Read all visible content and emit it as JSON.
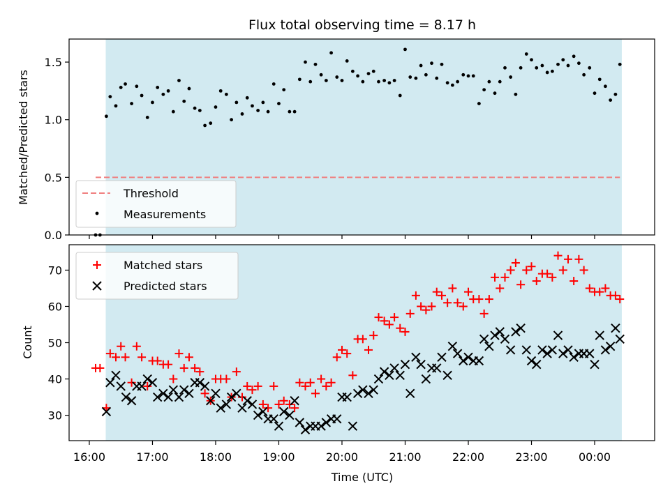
{
  "chart_data": [
    {
      "type": "scatter",
      "title": "Flux total observing time = 8.17 h",
      "xlabel": "",
      "ylabel": "Matched/Predicted stars",
      "x_units": "hours since 16:00 UTC",
      "xlim": [
        -0.32,
        8.95
      ],
      "ylim": [
        0.0,
        1.7
      ],
      "yticks": [
        0.0,
        0.5,
        1.0,
        1.5
      ],
      "ytick_labels": [
        "0.0",
        "0.5",
        "1.0",
        "1.5"
      ],
      "observing_window": [
        0.26,
        8.43
      ],
      "observing_window_color": "#add8e6",
      "threshold": {
        "name": "Threshold",
        "value": 0.5,
        "x_range": [
          0.1,
          8.4
        ],
        "color": "#f07f7f"
      },
      "legend": {
        "location": "lower-left",
        "entries": [
          "Threshold",
          "Measurements"
        ]
      },
      "series": [
        {
          "name": "Measurements",
          "color": "#000000",
          "x": [
            0.1,
            0.17,
            0.27,
            0.33,
            0.42,
            0.5,
            0.57,
            0.67,
            0.75,
            0.83,
            0.92,
            1.0,
            1.08,
            1.17,
            1.25,
            1.33,
            1.42,
            1.5,
            1.58,
            1.67,
            1.75,
            1.83,
            1.92,
            2.0,
            2.08,
            2.17,
            2.25,
            2.33,
            2.42,
            2.5,
            2.58,
            2.67,
            2.75,
            2.83,
            2.92,
            3.0,
            3.08,
            3.17,
            3.25,
            3.33,
            3.42,
            3.5,
            3.58,
            3.67,
            3.75,
            3.83,
            3.92,
            4.0,
            4.08,
            4.17,
            4.25,
            4.33,
            4.42,
            4.5,
            4.58,
            4.67,
            4.75,
            4.83,
            4.92,
            5.0,
            5.08,
            5.17,
            5.25,
            5.33,
            5.42,
            5.5,
            5.58,
            5.67,
            5.75,
            5.83,
            5.92,
            6.0,
            6.08,
            6.17,
            6.25,
            6.33,
            6.42,
            6.5,
            6.58,
            6.67,
            6.75,
            6.83,
            6.92,
            7.0,
            7.08,
            7.17,
            7.25,
            7.33,
            7.42,
            7.5,
            7.58,
            7.67,
            7.75,
            7.83,
            7.92,
            8.0,
            8.08,
            8.17,
            8.25,
            8.33,
            8.4
          ],
          "values": [
            0.0,
            0.0,
            1.03,
            1.2,
            1.12,
            1.28,
            1.31,
            1.14,
            1.29,
            1.21,
            1.02,
            1.15,
            1.28,
            1.22,
            1.25,
            1.07,
            1.34,
            1.16,
            1.27,
            1.1,
            1.08,
            0.95,
            0.97,
            1.11,
            1.25,
            1.22,
            1.0,
            1.15,
            1.05,
            1.19,
            1.12,
            1.08,
            1.15,
            1.07,
            1.31,
            1.14,
            1.26,
            1.07,
            1.07,
            1.35,
            1.5,
            1.33,
            1.48,
            1.39,
            1.34,
            1.58,
            1.37,
            1.34,
            1.51,
            1.42,
            1.38,
            1.33,
            1.4,
            1.42,
            1.33,
            1.34,
            1.32,
            1.34,
            1.21,
            1.61,
            1.37,
            1.36,
            1.47,
            1.39,
            1.49,
            1.36,
            1.48,
            1.32,
            1.3,
            1.33,
            1.39,
            1.38,
            1.38,
            1.14,
            1.26,
            1.33,
            1.23,
            1.33,
            1.45,
            1.37,
            1.22,
            1.45,
            1.57,
            1.52,
            1.45,
            1.47,
            1.41,
            1.42,
            1.48,
            1.52,
            1.47,
            1.55,
            1.49,
            1.39,
            1.45,
            1.23,
            1.35,
            1.29,
            1.17,
            1.22,
            1.48
          ]
        }
      ]
    },
    {
      "type": "scatter",
      "title": "",
      "xlabel": "Time (UTC)",
      "ylabel": "Count",
      "x_units": "hours since 16:00 UTC",
      "xlim": [
        -0.32,
        8.95
      ],
      "ylim": [
        23,
        77
      ],
      "yticks": [
        30,
        40,
        50,
        60,
        70
      ],
      "ytick_labels": [
        "30",
        "40",
        "50",
        "60",
        "70"
      ],
      "xticks": [
        0,
        1,
        2,
        3,
        4,
        5,
        6,
        7,
        8
      ],
      "xtick_labels": [
        "16:00",
        "17:00",
        "18:00",
        "19:00",
        "20:00",
        "21:00",
        "22:00",
        "23:00",
        "00:00"
      ],
      "observing_window": [
        0.26,
        8.43
      ],
      "observing_window_color": "#add8e6",
      "legend": {
        "location": "upper-left",
        "entries": [
          "Matched stars",
          "Predicted stars"
        ]
      },
      "series": [
        {
          "name": "Matched stars",
          "marker": "+",
          "color": "#ff0000",
          "x": [
            0.1,
            0.17,
            0.27,
            0.33,
            0.42,
            0.5,
            0.57,
            0.67,
            0.75,
            0.83,
            0.92,
            1.0,
            1.08,
            1.17,
            1.25,
            1.33,
            1.42,
            1.5,
            1.58,
            1.67,
            1.75,
            1.83,
            1.92,
            2.0,
            2.08,
            2.17,
            2.25,
            2.33,
            2.42,
            2.5,
            2.58,
            2.67,
            2.75,
            2.83,
            2.92,
            3.0,
            3.08,
            3.17,
            3.25,
            3.33,
            3.42,
            3.5,
            3.58,
            3.67,
            3.75,
            3.83,
            3.92,
            4.0,
            4.08,
            4.17,
            4.25,
            4.33,
            4.42,
            4.5,
            4.58,
            4.67,
            4.75,
            4.83,
            4.92,
            5.0,
            5.08,
            5.17,
            5.25,
            5.33,
            5.42,
            5.5,
            5.58,
            5.67,
            5.75,
            5.83,
            5.92,
            6.0,
            6.08,
            6.17,
            6.25,
            6.33,
            6.42,
            6.5,
            6.58,
            6.67,
            6.75,
            6.83,
            6.92,
            7.0,
            7.08,
            7.17,
            7.25,
            7.33,
            7.42,
            7.5,
            7.58,
            7.67,
            7.75,
            7.83,
            7.92,
            8.0,
            8.08,
            8.17,
            8.25,
            8.33,
            8.4
          ],
          "values": [
            43,
            43,
            32,
            47,
            46,
            49,
            46,
            39,
            49,
            46,
            38,
            45,
            45,
            44,
            44,
            40,
            47,
            43,
            46,
            43,
            42,
            36,
            34,
            40,
            40,
            40,
            35,
            42,
            35,
            38,
            37,
            38,
            33,
            32,
            38,
            33,
            34,
            33,
            32,
            39,
            38,
            39,
            36,
            40,
            38,
            39,
            46,
            48,
            47,
            41,
            51,
            51,
            48,
            52,
            57,
            56,
            55,
            57,
            54,
            53,
            58,
            63,
            60,
            59,
            60,
            64,
            63,
            61,
            65,
            61,
            60,
            64,
            62,
            62,
            58,
            62,
            68,
            65,
            68,
            70,
            72,
            66,
            70,
            71,
            67,
            69,
            69,
            68,
            74,
            70,
            73,
            67,
            73,
            70,
            65,
            64,
            64,
            65,
            63,
            63,
            62
          ]
        },
        {
          "name": "Predicted stars",
          "marker": "x",
          "color": "#000000",
          "x": [
            0.27,
            0.33,
            0.42,
            0.5,
            0.58,
            0.67,
            0.75,
            0.83,
            0.92,
            1.0,
            1.08,
            1.17,
            1.25,
            1.33,
            1.42,
            1.5,
            1.58,
            1.67,
            1.75,
            1.83,
            1.92,
            2.0,
            2.08,
            2.17,
            2.25,
            2.33,
            2.42,
            2.5,
            2.58,
            2.67,
            2.75,
            2.83,
            2.92,
            3.0,
            3.08,
            3.17,
            3.25,
            3.33,
            3.42,
            3.5,
            3.58,
            3.67,
            3.75,
            3.83,
            3.92,
            4.0,
            4.08,
            4.17,
            4.25,
            4.33,
            4.42,
            4.5,
            4.58,
            4.67,
            4.75,
            4.83,
            4.92,
            5.0,
            5.08,
            5.17,
            5.25,
            5.33,
            5.42,
            5.5,
            5.58,
            5.67,
            5.75,
            5.83,
            5.92,
            6.0,
            6.08,
            6.17,
            6.25,
            6.33,
            6.42,
            6.5,
            6.58,
            6.67,
            6.75,
            6.83,
            6.92,
            7.0,
            7.08,
            7.17,
            7.25,
            7.33,
            7.42,
            7.5,
            7.58,
            7.67,
            7.75,
            7.83,
            7.92,
            8.0,
            8.08,
            8.17,
            8.25,
            8.33,
            8.4
          ],
          "values": [
            31,
            39,
            41,
            38,
            35,
            34,
            38,
            38,
            40,
            39,
            35,
            36,
            35,
            37,
            35,
            37,
            36,
            39,
            39,
            38,
            34,
            36,
            32,
            33,
            35,
            36,
            32,
            34,
            33,
            30,
            31,
            29,
            29,
            27,
            31,
            30,
            34,
            28,
            26,
            27,
            27,
            27,
            28,
            29,
            29,
            35,
            35,
            27,
            36,
            37,
            36,
            37,
            40,
            42,
            41,
            43,
            41,
            44,
            36,
            46,
            44,
            40,
            43,
            43,
            46,
            41,
            49,
            47,
            45,
            46,
            45,
            45,
            51,
            49,
            52,
            53,
            51,
            48,
            53,
            54,
            48,
            45,
            44,
            48,
            47,
            48,
            52,
            47,
            48,
            46,
            47,
            47,
            47,
            44,
            52,
            48,
            49,
            54,
            51
          ]
        }
      ]
    }
  ]
}
